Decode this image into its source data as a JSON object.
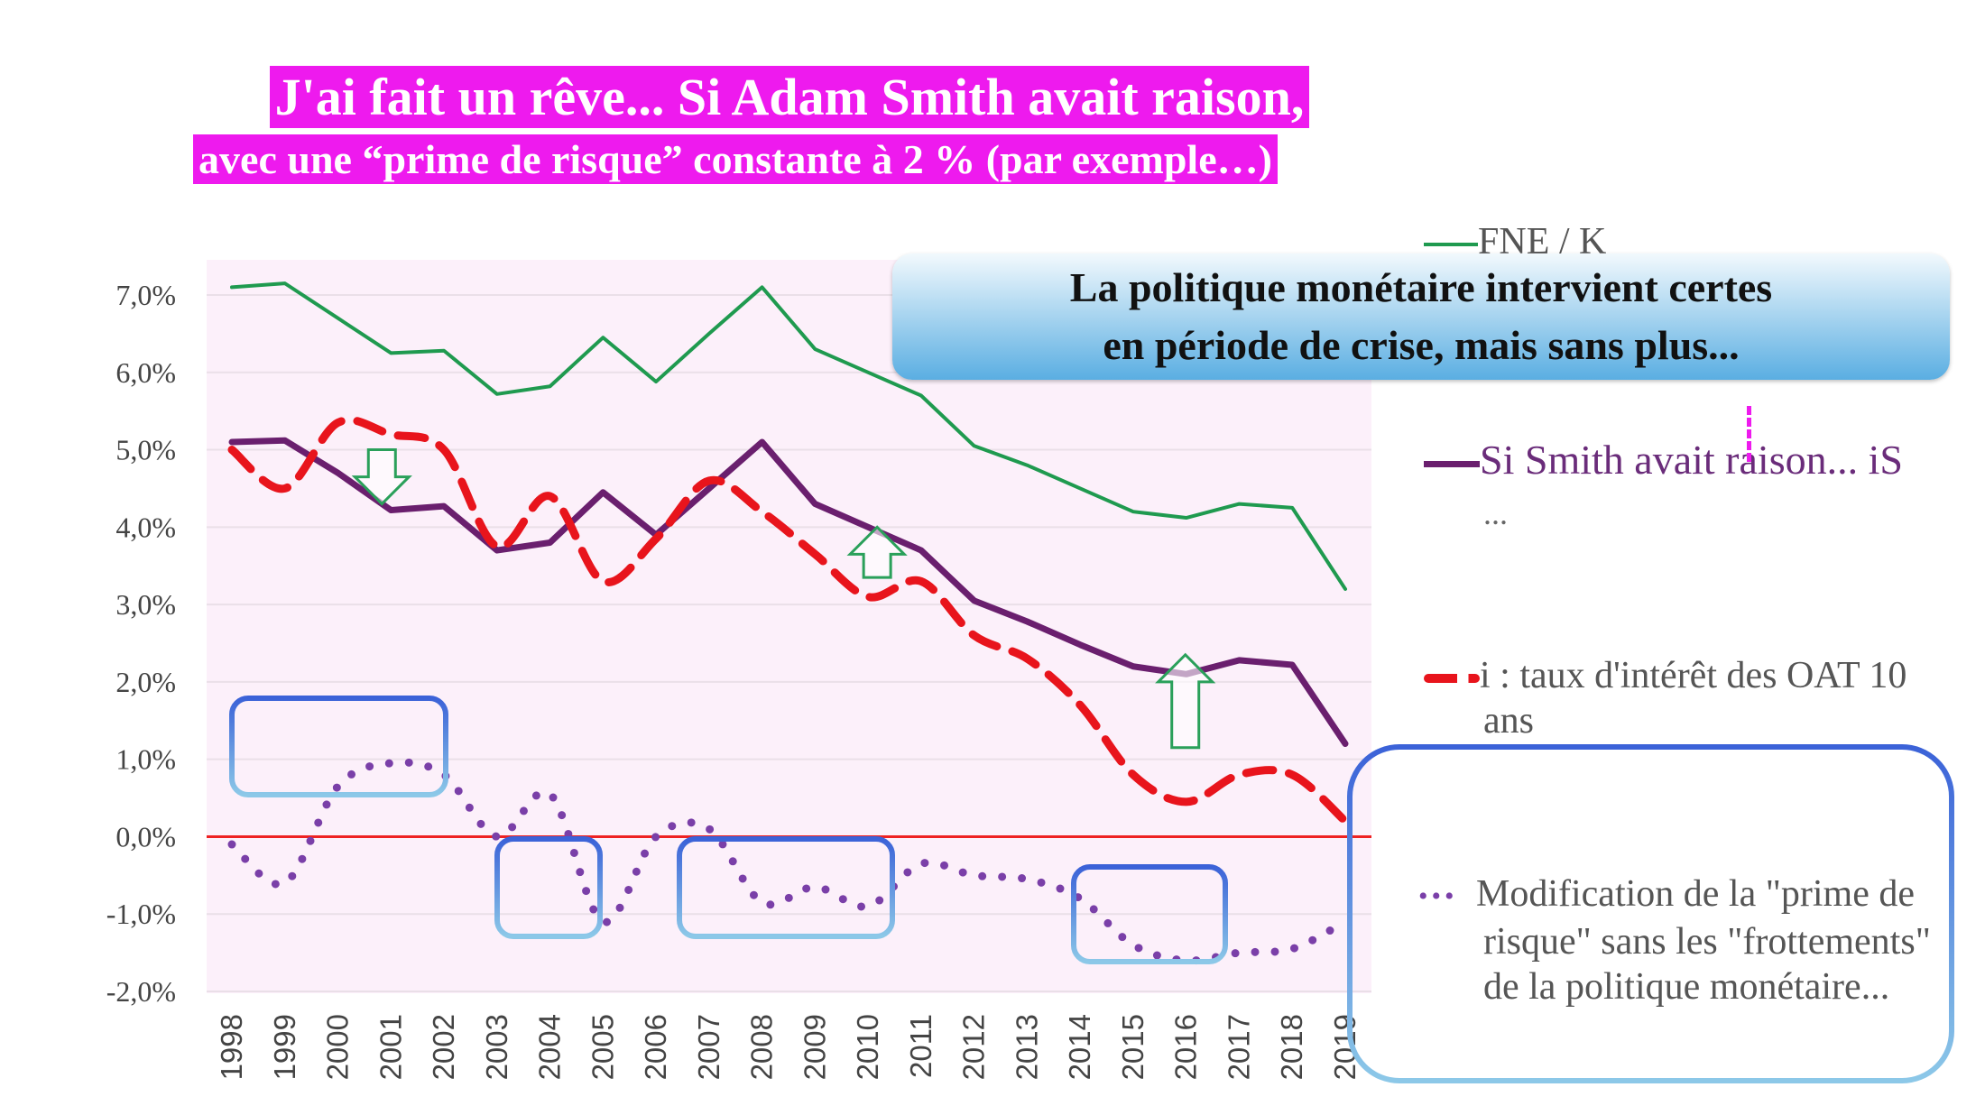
{
  "title": {
    "line1": "J'ai fait un rêve... Si Adam Smith avait raison,",
    "line2": "avec une “prime de risque” constante à 2 % (par exemple…)"
  },
  "callout": {
    "line1": "La politique monétaire intervient certes",
    "line2": "en période de crise, mais sans plus..."
  },
  "colors": {
    "fne": "#1f9a4f",
    "smith": "#6a1f6e",
    "oat": "#e8141c",
    "prime": "#7a3fa8",
    "zero": "#ee2222",
    "box": "#3b6fd8",
    "arrow": "#2aa05a",
    "title_bg": "#ee1aee"
  },
  "chart_data": {
    "type": "line",
    "x": [
      1998,
      1999,
      2000,
      2001,
      2002,
      2003,
      2004,
      2005,
      2006,
      2007,
      2008,
      2009,
      2010,
      2011,
      2012,
      2013,
      2014,
      2015,
      2016,
      2017,
      2018,
      2019
    ],
    "ylim": [
      -2.0,
      7.0
    ],
    "yticks": [
      "-2,0%",
      "-1,0%",
      "0,0%",
      "1,0%",
      "2,0%",
      "3,0%",
      "4,0%",
      "5,0%",
      "6,0%",
      "7,0%"
    ],
    "grid": true,
    "legend_position": "right",
    "series": [
      {
        "name": "FNE / K",
        "style": "solid",
        "values": [
          7.1,
          7.15,
          6.7,
          6.25,
          6.28,
          5.72,
          5.82,
          6.45,
          5.88,
          6.5,
          7.1,
          6.3,
          6.0,
          5.7,
          5.05,
          4.8,
          4.5,
          4.2,
          4.12,
          4.3,
          4.25,
          3.2
        ]
      },
      {
        "name": "Si Smith avait raison... iS",
        "name_cont": "...",
        "style": "solid",
        "values": [
          5.1,
          5.12,
          4.7,
          4.22,
          4.27,
          3.7,
          3.8,
          4.45,
          3.9,
          4.5,
          5.1,
          4.3,
          4.0,
          3.7,
          3.05,
          2.78,
          2.48,
          2.2,
          2.1,
          2.28,
          2.22,
          1.2
        ]
      },
      {
        "name": "i : taux d'intérêt des OAT 10",
        "name_cont": "ans",
        "style": "dashed",
        "values": [
          5.0,
          4.5,
          5.35,
          5.2,
          5.0,
          3.75,
          4.4,
          3.3,
          3.85,
          4.6,
          4.2,
          3.65,
          3.1,
          3.3,
          2.6,
          2.3,
          1.7,
          0.8,
          0.45,
          0.8,
          0.8,
          0.2
        ]
      },
      {
        "name": "Modification de la \"prime de",
        "name_cont": "risque\" sans les \"frottements\"",
        "name_cont2": "de la politique monétaire...",
        "style": "dotted",
        "values": [
          -0.1,
          -0.6,
          0.65,
          0.95,
          0.8,
          0.0,
          0.55,
          -1.1,
          0.0,
          0.1,
          -0.85,
          -0.65,
          -0.9,
          -0.35,
          -0.5,
          -0.55,
          -0.8,
          -1.4,
          -1.6,
          -1.5,
          -1.45,
          -1.1
        ]
      }
    ]
  }
}
